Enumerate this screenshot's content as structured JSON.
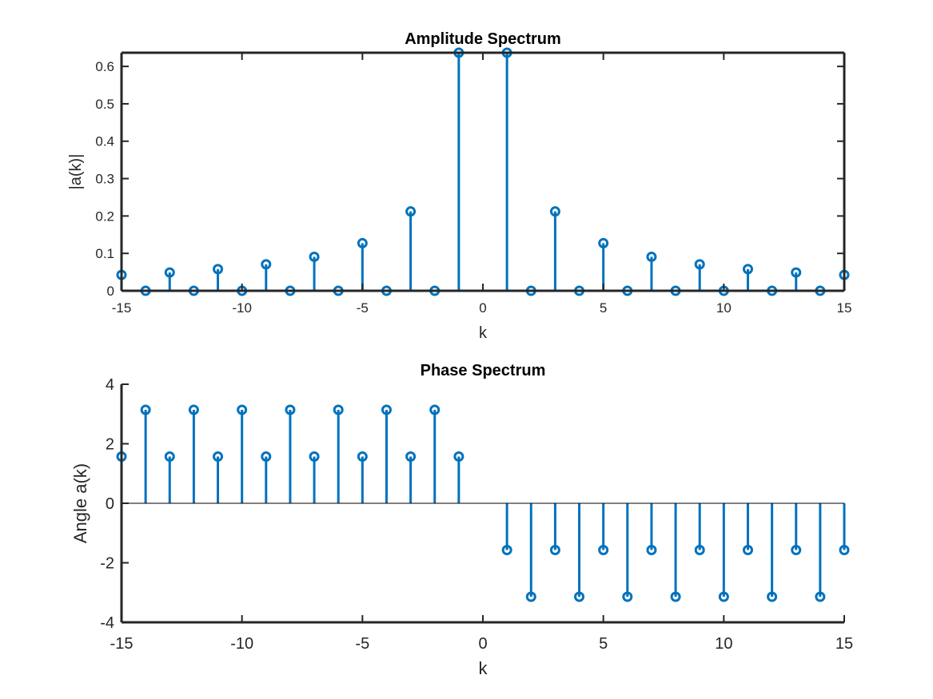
{
  "chart_data": [
    {
      "type": "stem",
      "title": "Amplitude Spectrum",
      "xlabel": "k",
      "ylabel": "|a(k)|",
      "xlim": [
        -15,
        15
      ],
      "ylim": [
        0,
        0.6366
      ],
      "xticks": [
        -15,
        -10,
        -5,
        0,
        5,
        10,
        15
      ],
      "xtick_labels": [
        "-15",
        "-10",
        "-5",
        "0",
        "5",
        "10",
        "15"
      ],
      "yticks": [
        0,
        0.1,
        0.2,
        0.3,
        0.4,
        0.5,
        0.6
      ],
      "ytick_labels": [
        "0",
        "0.1",
        "0.2",
        "0.3",
        "0.4",
        "0.5",
        "0.6"
      ],
      "grid": false,
      "box": true,
      "color": "#0072BD",
      "x": [
        -15,
        -14,
        -13,
        -12,
        -11,
        -10,
        -9,
        -8,
        -7,
        -6,
        -5,
        -4,
        -3,
        -2,
        -1,
        0,
        1,
        2,
        3,
        4,
        5,
        6,
        7,
        8,
        9,
        10,
        11,
        12,
        13,
        14,
        15
      ],
      "y": [
        0.0424,
        0,
        0.049,
        0,
        0.0579,
        0,
        0.0707,
        0,
        0.0909,
        0,
        0.1273,
        0,
        0.2122,
        0,
        0.6366,
        null,
        0.6366,
        0,
        0.2122,
        0,
        0.1273,
        0,
        0.0909,
        0,
        0.0707,
        0,
        0.0579,
        0,
        0.049,
        0,
        0.0424
      ]
    },
    {
      "type": "stem",
      "title": "Phase Spectrum",
      "xlabel": "k",
      "ylabel": "Angle a(k)",
      "xlim": [
        -15,
        15
      ],
      "ylim": [
        -4,
        4
      ],
      "xticks": [
        -15,
        -10,
        -5,
        0,
        5,
        10,
        15
      ],
      "xtick_labels": [
        "-15",
        "-10",
        "-5",
        "0",
        "5",
        "10",
        "15"
      ],
      "yticks": [
        -4,
        -2,
        0,
        2,
        4
      ],
      "ytick_labels": [
        "-4",
        "-2",
        "0",
        "2",
        "4"
      ],
      "grid": false,
      "box": false,
      "color": "#0072BD",
      "x": [
        -15,
        -14,
        -13,
        -12,
        -11,
        -10,
        -9,
        -8,
        -7,
        -6,
        -5,
        -4,
        -3,
        -2,
        -1,
        0,
        1,
        2,
        3,
        4,
        5,
        6,
        7,
        8,
        9,
        10,
        11,
        12,
        13,
        14,
        15
      ],
      "y": [
        1.5708,
        3.1416,
        1.5708,
        3.1416,
        1.5708,
        3.1416,
        1.5708,
        3.1416,
        1.5708,
        3.1416,
        1.5708,
        3.1416,
        1.5708,
        3.1416,
        1.5708,
        null,
        -1.5708,
        -3.1416,
        -1.5708,
        -3.1416,
        -1.5708,
        -3.1416,
        -1.5708,
        -3.1416,
        -1.5708,
        -3.1416,
        -1.5708,
        -3.1416,
        -1.5708,
        -3.1416,
        -1.5708
      ]
    }
  ]
}
